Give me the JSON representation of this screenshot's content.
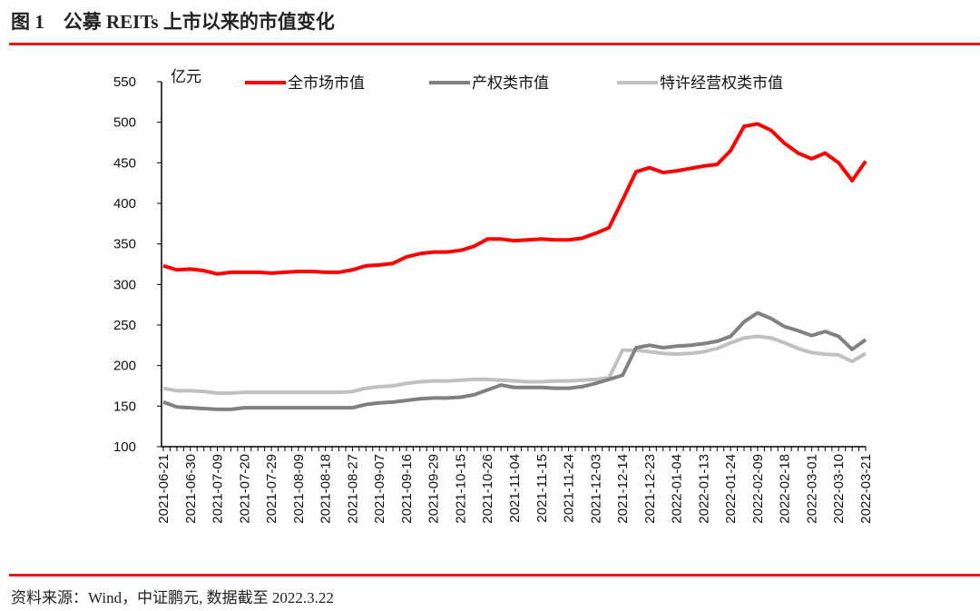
{
  "title": "图 1    公募 REITs 上市以来的市值变化",
  "source": "资料来源：Wind，中证鹏元, 数据截至 2022.3.22",
  "chart_data": {
    "type": "line",
    "title": "公募 REITs 上市以来的市值变化",
    "ylabel": "亿元",
    "xlabel": "",
    "ylim": [
      100,
      550
    ],
    "yticks": [
      100,
      150,
      200,
      250,
      300,
      350,
      400,
      450,
      500,
      550
    ],
    "grid": false,
    "legend": "top",
    "xtick_labels": [
      "2021-06-21",
      "2021-06-30",
      "2021-07-09",
      "2021-07-20",
      "2021-07-29",
      "2021-08-09",
      "2021-08-18",
      "2021-08-27",
      "2021-09-07",
      "2021-09-16",
      "2021-09-29",
      "2021-10-15",
      "2021-10-26",
      "2021-11-04",
      "2021-11-15",
      "2021-11-24",
      "2021-12-03",
      "2021-12-14",
      "2021-12-23",
      "2022-01-04",
      "2022-01-13",
      "2022-01-24",
      "2022-02-09",
      "2022-02-18",
      "2022-03-01",
      "2022-03-10",
      "2022-03-21"
    ],
    "x": [
      "2021-06-21",
      "2021-06-25",
      "2021-06-30",
      "2021-07-05",
      "2021-07-09",
      "2021-07-14",
      "2021-07-20",
      "2021-07-23",
      "2021-07-29",
      "2021-08-03",
      "2021-08-09",
      "2021-08-12",
      "2021-08-18",
      "2021-08-23",
      "2021-08-27",
      "2021-09-01",
      "2021-09-07",
      "2021-09-10",
      "2021-09-16",
      "2021-09-24",
      "2021-09-29",
      "2021-10-11",
      "2021-10-15",
      "2021-10-20",
      "2021-10-26",
      "2021-10-29",
      "2021-11-04",
      "2021-11-09",
      "2021-11-15",
      "2021-11-18",
      "2021-11-24",
      "2021-11-29",
      "2021-12-03",
      "2021-12-08",
      "2021-12-14",
      "2021-12-17",
      "2021-12-23",
      "2021-12-28",
      "2022-01-04",
      "2022-01-07",
      "2022-01-13",
      "2022-01-18",
      "2022-01-24",
      "2022-01-28",
      "2022-02-09",
      "2022-02-14",
      "2022-02-18",
      "2022-02-23",
      "2022-03-01",
      "2022-03-04",
      "2022-03-10",
      "2022-03-15",
      "2022-03-21"
    ],
    "series": [
      {
        "name": "全市场市值",
        "color": "#ff0000",
        "values": [
          323,
          318,
          319,
          317,
          313,
          315,
          315,
          315,
          314,
          315,
          316,
          316,
          315,
          315,
          318,
          323,
          324,
          326,
          334,
          338,
          340,
          340,
          342,
          347,
          356,
          356,
          354,
          355,
          356,
          355,
          355,
          357,
          363,
          370,
          404,
          439,
          444,
          438,
          440,
          443,
          446,
          448,
          465,
          495,
          498,
          490,
          474,
          462,
          455,
          462,
          450,
          428,
          452
        ]
      },
      {
        "name": "产权类市值",
        "color": "#808080",
        "values": [
          155,
          149,
          148,
          147,
          146,
          146,
          148,
          148,
          148,
          148,
          148,
          148,
          148,
          148,
          148,
          152,
          154,
          155,
          157,
          159,
          160,
          160,
          161,
          164,
          170,
          176,
          173,
          173,
          173,
          172,
          172,
          174,
          178,
          183,
          188,
          222,
          225,
          222,
          224,
          225,
          227,
          230,
          236,
          254,
          265,
          258,
          248,
          243,
          237,
          242,
          236,
          220,
          232
        ]
      },
      {
        "name": "特许经营权类市值",
        "color": "#c0c0c0",
        "values": [
          172,
          169,
          169,
          168,
          166,
          166,
          167,
          167,
          167,
          167,
          167,
          167,
          167,
          167,
          168,
          172,
          174,
          175,
          178,
          180,
          181,
          181,
          182,
          183,
          183,
          182,
          181,
          180,
          180,
          181,
          181,
          182,
          183,
          185,
          219,
          219,
          217,
          215,
          214,
          215,
          217,
          221,
          228,
          234,
          236,
          234,
          228,
          221,
          216,
          214,
          213,
          205,
          215
        ]
      }
    ]
  }
}
